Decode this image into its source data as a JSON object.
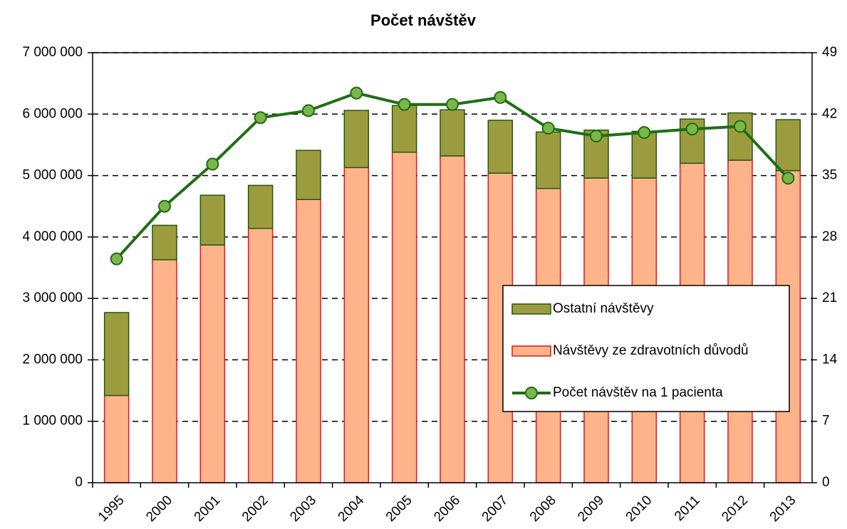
{
  "chart_data": {
    "type": "bar-line",
    "title": "Počet návštěv",
    "categories": [
      "1995",
      "2000",
      "2001",
      "2002",
      "2003",
      "2004",
      "2005",
      "2006",
      "2007",
      "2008",
      "2009",
      "2010",
      "2011",
      "2012",
      "2013"
    ],
    "series": [
      {
        "name": "Návštěvy ze zdravotních důvodů",
        "color": "#fdb48a",
        "stroke": "#e8141a",
        "kind": "bar",
        "values": [
          1420000,
          3630000,
          3870000,
          4140000,
          4610000,
          5130000,
          5380000,
          5320000,
          5040000,
          4790000,
          4960000,
          4960000,
          5200000,
          5250000,
          5080000
        ]
      },
      {
        "name": "Ostatní návštěvy",
        "color": "#9c9c3e",
        "stroke": "#1e5a14",
        "kind": "bar",
        "values": [
          1350000,
          560000,
          810000,
          700000,
          800000,
          930000,
          760000,
          750000,
          860000,
          920000,
          780000,
          760000,
          720000,
          770000,
          830000
        ]
      },
      {
        "name": "Počet návštěv na 1 pacienta",
        "color": "#1f6e14",
        "marker": "#7ab648",
        "kind": "line",
        "axis": "y2",
        "values": [
          25.5,
          31.5,
          36.3,
          41.6,
          42.4,
          44.4,
          43.1,
          43.1,
          43.9,
          40.4,
          39.5,
          39.9,
          40.3,
          40.6,
          34.7
        ]
      }
    ],
    "legend_order": [
      1,
      0,
      2
    ],
    "ylim": [
      0,
      7000000
    ],
    "yticks": [
      {
        "value": 0,
        "label": "0"
      },
      {
        "value": 1000000,
        "label": "1 000 000"
      },
      {
        "value": 2000000,
        "label": "2 000 000"
      },
      {
        "value": 3000000,
        "label": "3 000 000"
      },
      {
        "value": 4000000,
        "label": "4 000 000"
      },
      {
        "value": 5000000,
        "label": "5 000 000"
      },
      {
        "value": 6000000,
        "label": "6 000 000"
      },
      {
        "value": 7000000,
        "label": "7 000 000"
      }
    ],
    "y2lim": [
      0,
      49
    ],
    "y2ticks": [
      0,
      7,
      14,
      21,
      28,
      35,
      42,
      49
    ],
    "grid": true,
    "legend": "lower right"
  }
}
